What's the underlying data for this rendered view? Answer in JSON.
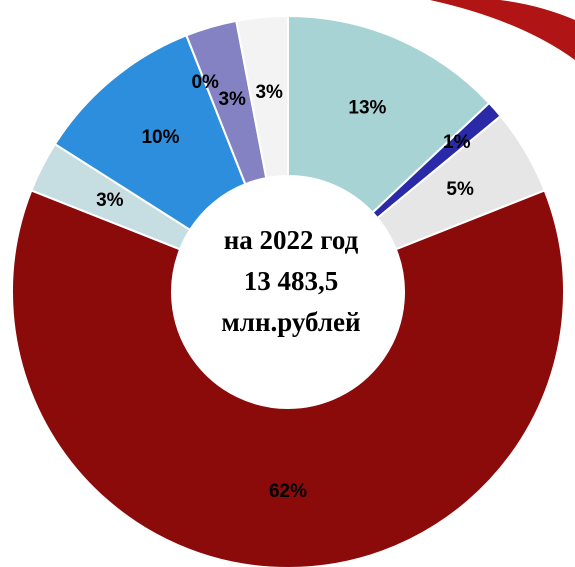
{
  "chart_data": {
    "type": "donut",
    "values": [
      13,
      1,
      5,
      62,
      3,
      10,
      0,
      3,
      3
    ],
    "value_labels": [
      "13%",
      "1%",
      "5%",
      "62%",
      "3%",
      "10%",
      "0%",
      "3%",
      "3%"
    ],
    "colors": [
      "#a8d3d5",
      "#2a2aa8",
      "#e6e6e6",
      "#8b0a0a",
      "#c6dde2",
      "#2e8ede",
      "#6f6fb8",
      "#8482c2",
      "#f3f3f3"
    ],
    "center_text": [
      "на 2022 год",
      "13 483,5",
      "млн.рублей"
    ]
  }
}
